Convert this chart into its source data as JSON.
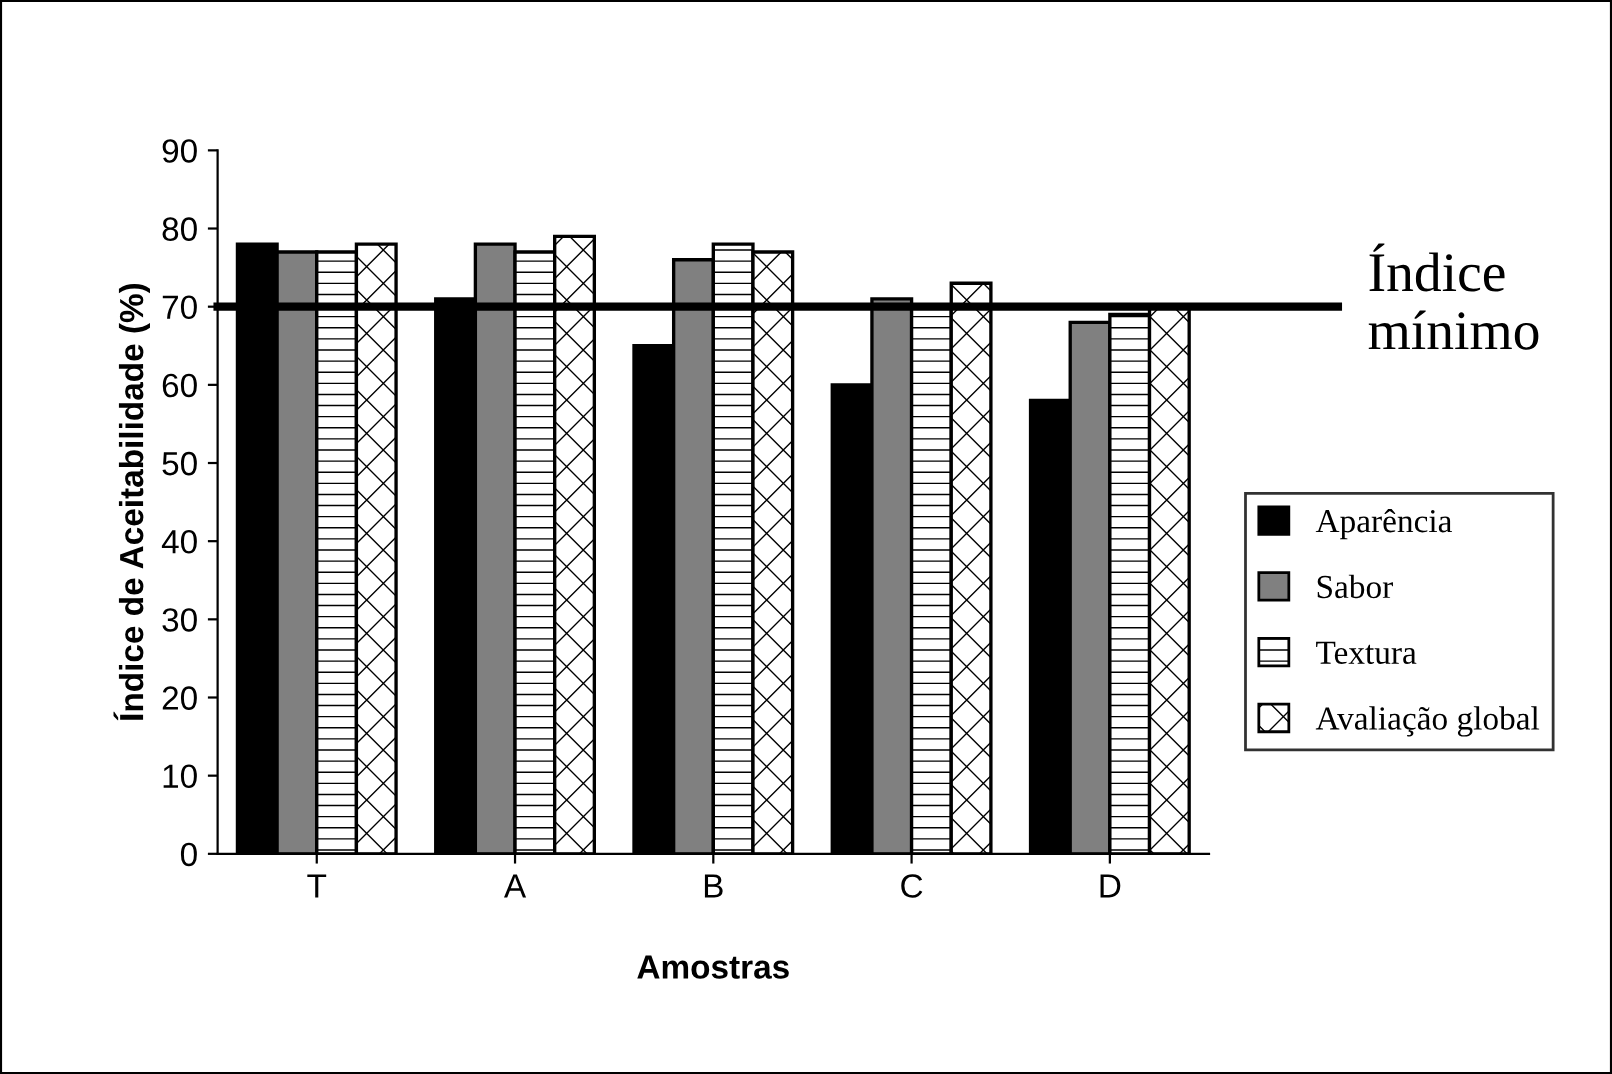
{
  "chart_data": {
    "type": "bar",
    "xlabel": "Amostras",
    "ylabel": "Índice de Aceitabilidade (%)",
    "categories": [
      "T",
      "A",
      "B",
      "C",
      "D"
    ],
    "series": [
      {
        "name": "Aparência",
        "color": "#000000",
        "values": [
          78,
          71,
          65,
          60,
          58
        ]
      },
      {
        "name": "Sabor",
        "color": "#808080",
        "values": [
          77,
          78,
          76,
          71,
          68
        ]
      },
      {
        "name": "Textura",
        "color": "#000000",
        "values": [
          77,
          77,
          78,
          70,
          69
        ]
      },
      {
        "name": "Avaliação global",
        "color": "#000000",
        "values": [
          78,
          79,
          77,
          73,
          70
        ]
      }
    ],
    "ylim": [
      0,
      90
    ],
    "yticks": [
      0,
      10,
      20,
      30,
      40,
      50,
      60,
      70,
      80,
      90
    ],
    "ref_lines": [
      {
        "axis": "y",
        "value": 70,
        "label": "Índice mínimo",
        "color": "#000000"
      }
    ],
    "legend": "right",
    "grid": false
  }
}
